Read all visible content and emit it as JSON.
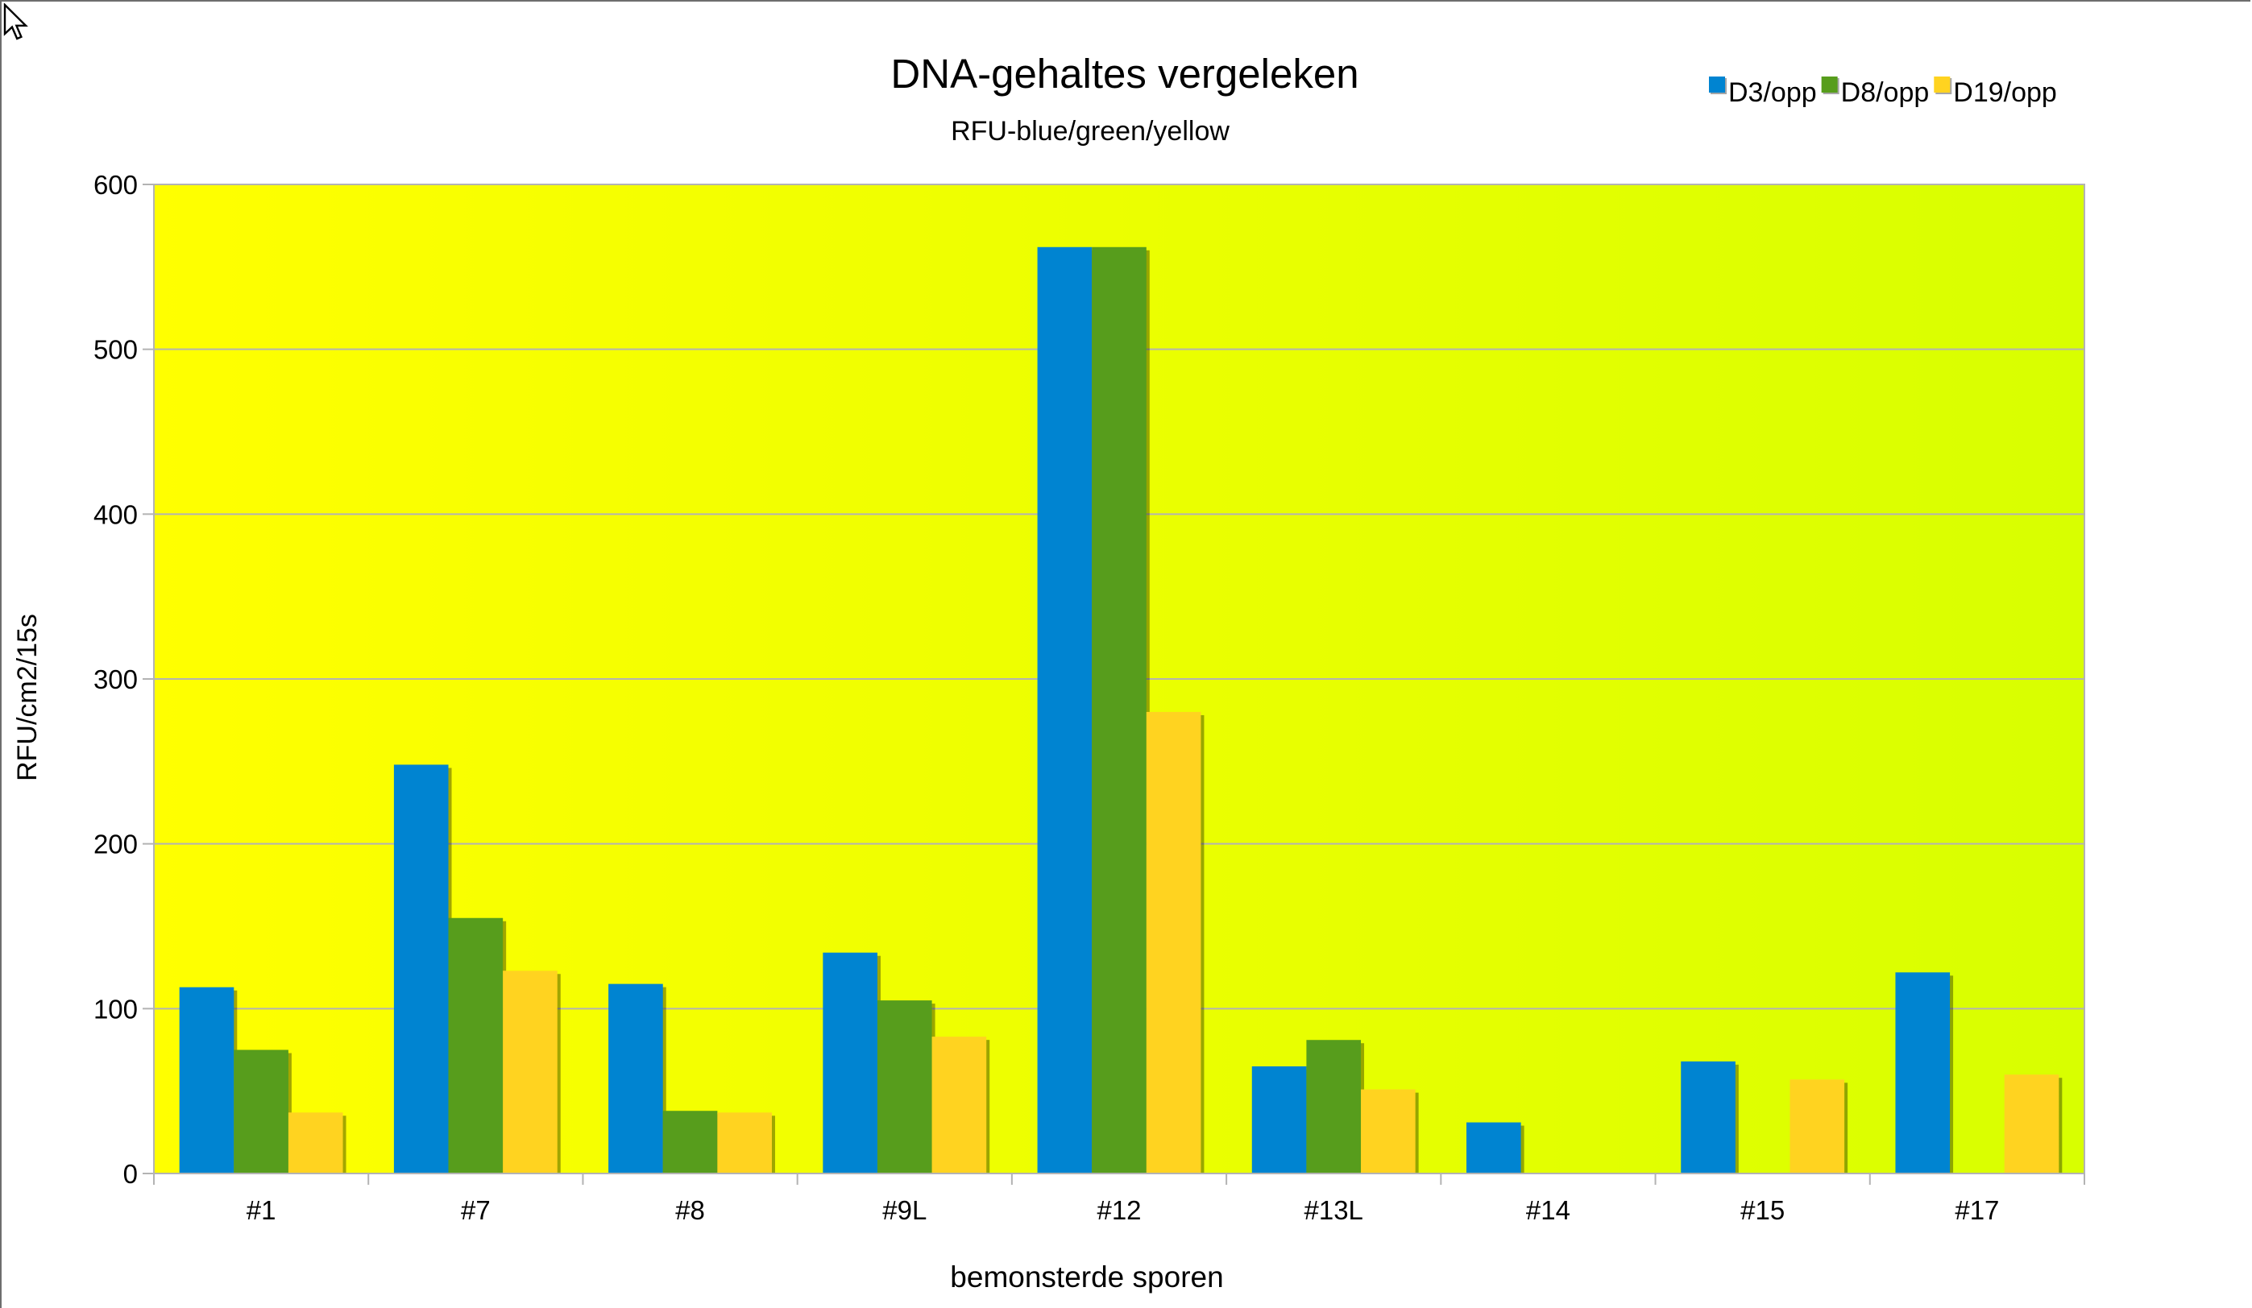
{
  "chart_data": {
    "type": "bar",
    "title": "DNA-gehaltes vergeleken",
    "subtitle": "RFU-blue/green/yellow",
    "xlabel": "bemonsterde sporen",
    "ylabel": "RFU/cm2/15s",
    "ylim": [
      0,
      600
    ],
    "yticks": [
      0,
      100,
      200,
      300,
      400,
      500,
      600
    ],
    "grid": true,
    "legend_position": "top-right",
    "plot_background": [
      "#ffff00",
      "#d8ff00"
    ],
    "categories": [
      "#1",
      "#7",
      "#8",
      "#9L",
      "#12",
      "#13L",
      "#14",
      "#15",
      "#17"
    ],
    "series": [
      {
        "name": "D3/opp",
        "color": "#0084d1",
        "values": [
          113,
          248,
          115,
          134,
          562,
          65,
          31,
          68,
          122
        ]
      },
      {
        "name": "D8/opp",
        "color": "#579d1c",
        "values": [
          75,
          155,
          38,
          105,
          562,
          81,
          null,
          null,
          null
        ]
      },
      {
        "name": "D19/opp",
        "color": "#ffd320",
        "values": [
          37,
          123,
          37,
          83,
          280,
          51,
          null,
          57,
          60
        ]
      }
    ]
  }
}
